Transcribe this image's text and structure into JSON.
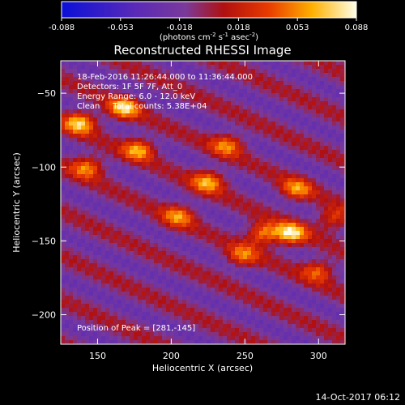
{
  "chart_data": {
    "type": "heatmap",
    "title": "Reconstructed RHESSI Image",
    "xlabel": "Heliocentric X (arcsec)",
    "ylabel": "Heliocentric Y (arcsec)",
    "xlim": [
      125,
      318
    ],
    "ylim": [
      -220,
      -28
    ],
    "xticks": [
      150,
      200,
      250,
      300
    ],
    "yticks": [
      -50,
      -100,
      -150,
      -200
    ],
    "colorbar": {
      "range": [
        -0.088,
        0.088
      ],
      "ticks": [
        "-0.088",
        "-0.053",
        "-0.018",
        "0.018",
        "0.053",
        "0.088"
      ],
      "unit_label": "(photons cm-2 s-1 asec-2)",
      "colormap": "blue-purple-red-yellow-white"
    },
    "annotations": [
      "18-Feb-2016 11:26:44.000 to 11:36:44.000",
      "Detectors: 1F 5F 7F, Att_0",
      "Energy Range: 6.0 - 12.0 keV",
      "Clean     Total counts: 5.38E+04"
    ],
    "peak_label": "Position of Peak = [281,-145]",
    "peak": {
      "x": 281,
      "y": -145
    },
    "footer_timestamp": "14-Oct-2017 06:12",
    "bright_lobes": [
      {
        "x": 138,
        "y": -70,
        "value": 0.082
      },
      {
        "x": 143,
        "y": -100,
        "value": 0.065
      },
      {
        "x": 168,
        "y": -60,
        "value": 0.08
      },
      {
        "x": 178,
        "y": -88,
        "value": 0.07
      },
      {
        "x": 205,
        "y": -133,
        "value": 0.06
      },
      {
        "x": 225,
        "y": -110,
        "value": 0.07
      },
      {
        "x": 238,
        "y": -85,
        "value": 0.06
      },
      {
        "x": 248,
        "y": -160,
        "value": 0.055
      },
      {
        "x": 262,
        "y": -145,
        "value": 0.07
      },
      {
        "x": 281,
        "y": -145,
        "value": 0.088
      },
      {
        "x": 285,
        "y": -115,
        "value": 0.06
      },
      {
        "x": 300,
        "y": -170,
        "value": 0.055
      },
      {
        "x": 310,
        "y": -135,
        "value": 0.05
      }
    ]
  }
}
